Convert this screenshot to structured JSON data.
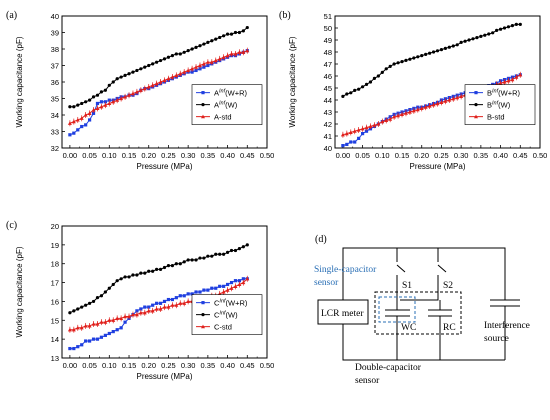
{
  "chart_data": [
    {
      "type": "line",
      "panel_label": "(a)",
      "xlabel": "Pressure (MPa)",
      "ylabel": "Working capacitance (pF)",
      "xlim": [
        -0.02,
        0.5
      ],
      "ylim": [
        32,
        40
      ],
      "x_ticks": [
        "0.00",
        "0.05",
        "0.10",
        "0.15",
        "0.20",
        "0.25",
        "0.30",
        "0.35",
        "0.40",
        "0.45",
        "0.50"
      ],
      "y_ticks": [
        "32",
        "33",
        "34",
        "35",
        "36",
        "37",
        "38",
        "39",
        "40"
      ],
      "legend_position": "center-right",
      "series": [
        {
          "name_prefix": "A",
          "name_sup": "Inf",
          "name_suffix": "(W+R)",
          "color": "#1f3fe0",
          "marker": "square",
          "x": [
            0.0,
            0.01,
            0.02,
            0.03,
            0.04,
            0.05,
            0.06,
            0.07,
            0.08,
            0.09,
            0.1,
            0.11,
            0.12,
            0.13,
            0.14,
            0.15,
            0.16,
            0.17,
            0.18,
            0.19,
            0.2,
            0.21,
            0.22,
            0.23,
            0.24,
            0.25,
            0.26,
            0.27,
            0.28,
            0.29,
            0.3,
            0.31,
            0.32,
            0.33,
            0.34,
            0.35,
            0.36,
            0.37,
            0.38,
            0.39,
            0.4,
            0.41,
            0.42,
            0.43,
            0.44,
            0.45
          ],
          "y": [
            32.8,
            32.9,
            33.1,
            33.3,
            33.4,
            33.7,
            34.1,
            34.7,
            34.8,
            34.8,
            34.9,
            34.9,
            35.0,
            35.1,
            35.1,
            35.2,
            35.2,
            35.3,
            35.5,
            35.6,
            35.6,
            35.7,
            35.8,
            35.9,
            36.0,
            36.1,
            36.2,
            36.3,
            36.4,
            36.5,
            36.6,
            36.6,
            36.7,
            36.8,
            36.9,
            37.0,
            37.1,
            37.2,
            37.3,
            37.4,
            37.5,
            37.6,
            37.6,
            37.7,
            37.8,
            37.9
          ]
        },
        {
          "name_prefix": "A",
          "name_sup": "Inf",
          "name_suffix": "(W)",
          "color": "#000000",
          "marker": "circle",
          "x": [
            0.0,
            0.01,
            0.02,
            0.03,
            0.04,
            0.05,
            0.06,
            0.07,
            0.08,
            0.09,
            0.1,
            0.11,
            0.12,
            0.13,
            0.14,
            0.15,
            0.16,
            0.17,
            0.18,
            0.19,
            0.2,
            0.21,
            0.22,
            0.23,
            0.24,
            0.25,
            0.26,
            0.27,
            0.28,
            0.29,
            0.3,
            0.31,
            0.32,
            0.33,
            0.34,
            0.35,
            0.36,
            0.37,
            0.38,
            0.39,
            0.4,
            0.41,
            0.42,
            0.43,
            0.44,
            0.45
          ],
          "y": [
            34.5,
            34.5,
            34.6,
            34.7,
            34.8,
            34.9,
            35.1,
            35.2,
            35.4,
            35.5,
            35.8,
            36.0,
            36.2,
            36.3,
            36.4,
            36.5,
            36.6,
            36.7,
            36.8,
            36.9,
            37.0,
            37.1,
            37.2,
            37.3,
            37.4,
            37.5,
            37.6,
            37.7,
            37.7,
            37.8,
            37.9,
            38.0,
            38.1,
            38.2,
            38.3,
            38.4,
            38.5,
            38.6,
            38.7,
            38.8,
            38.9,
            38.9,
            39.0,
            39.0,
            39.1,
            39.3
          ]
        },
        {
          "name_prefix": "A-std",
          "name_sup": "",
          "name_suffix": "",
          "color": "#e0201c",
          "marker": "triangle",
          "error_bars": true,
          "x": [
            0.0,
            0.01,
            0.02,
            0.03,
            0.04,
            0.05,
            0.06,
            0.07,
            0.08,
            0.09,
            0.1,
            0.11,
            0.12,
            0.13,
            0.14,
            0.15,
            0.16,
            0.17,
            0.18,
            0.19,
            0.2,
            0.21,
            0.22,
            0.23,
            0.24,
            0.25,
            0.26,
            0.27,
            0.28,
            0.29,
            0.3,
            0.31,
            0.32,
            0.33,
            0.34,
            0.35,
            0.36,
            0.37,
            0.38,
            0.39,
            0.4,
            0.41,
            0.42,
            0.43,
            0.44,
            0.45
          ],
          "y": [
            33.5,
            33.6,
            33.7,
            33.8,
            34.0,
            34.1,
            34.3,
            34.4,
            34.5,
            34.6,
            34.7,
            34.8,
            34.9,
            35.0,
            35.1,
            35.2,
            35.3,
            35.4,
            35.5,
            35.6,
            35.7,
            35.8,
            35.9,
            36.0,
            36.1,
            36.2,
            36.3,
            36.4,
            36.5,
            36.6,
            36.7,
            36.8,
            36.9,
            37.0,
            37.1,
            37.2,
            37.2,
            37.3,
            37.4,
            37.5,
            37.6,
            37.7,
            37.7,
            37.8,
            37.8,
            37.9
          ]
        }
      ]
    },
    {
      "type": "line",
      "panel_label": "(b)",
      "xlabel": "Pressure (MPa)",
      "ylabel": "Working capacitance (pF)",
      "xlim": [
        -0.02,
        0.5
      ],
      "ylim": [
        40,
        51
      ],
      "x_ticks": [
        "0.00",
        "0.05",
        "0.10",
        "0.15",
        "0.20",
        "0.25",
        "0.30",
        "0.35",
        "0.40",
        "0.45",
        "0.50"
      ],
      "y_ticks": [
        "40",
        "41",
        "42",
        "43",
        "44",
        "45",
        "46",
        "47",
        "48",
        "49",
        "50",
        "51"
      ],
      "legend_position": "center-right",
      "series": [
        {
          "name_prefix": "B",
          "name_sup": "Inf",
          "name_suffix": "(W+R)",
          "color": "#1f3fe0",
          "marker": "square",
          "x": [
            0.0,
            0.01,
            0.02,
            0.03,
            0.04,
            0.05,
            0.06,
            0.07,
            0.08,
            0.09,
            0.1,
            0.11,
            0.12,
            0.13,
            0.14,
            0.15,
            0.16,
            0.17,
            0.18,
            0.19,
            0.2,
            0.21,
            0.22,
            0.23,
            0.24,
            0.25,
            0.26,
            0.27,
            0.28,
            0.29,
            0.3,
            0.31,
            0.32,
            0.33,
            0.34,
            0.35,
            0.36,
            0.37,
            0.38,
            0.39,
            0.4,
            0.41,
            0.42,
            0.43,
            0.44,
            0.45
          ],
          "y": [
            40.2,
            40.3,
            40.5,
            40.5,
            40.8,
            41.2,
            41.4,
            41.6,
            41.8,
            42.0,
            42.2,
            42.4,
            42.6,
            42.8,
            42.9,
            43.0,
            43.1,
            43.2,
            43.3,
            43.4,
            43.4,
            43.5,
            43.6,
            43.7,
            43.8,
            44.0,
            44.1,
            44.2,
            44.3,
            44.4,
            44.5,
            44.6,
            44.7,
            44.8,
            44.9,
            45.0,
            45.1,
            45.2,
            45.3,
            45.4,
            45.6,
            45.7,
            45.8,
            45.9,
            46.0,
            46.1
          ]
        },
        {
          "name_prefix": "B",
          "name_sup": "Inf",
          "name_suffix": "(W)",
          "color": "#000000",
          "marker": "circle",
          "x": [
            0.0,
            0.01,
            0.02,
            0.03,
            0.04,
            0.05,
            0.06,
            0.07,
            0.08,
            0.09,
            0.1,
            0.11,
            0.12,
            0.13,
            0.14,
            0.15,
            0.16,
            0.17,
            0.18,
            0.19,
            0.2,
            0.21,
            0.22,
            0.23,
            0.24,
            0.25,
            0.26,
            0.27,
            0.28,
            0.29,
            0.3,
            0.31,
            0.32,
            0.33,
            0.34,
            0.35,
            0.36,
            0.37,
            0.38,
            0.39,
            0.4,
            0.41,
            0.42,
            0.43,
            0.44,
            0.45
          ],
          "y": [
            44.3,
            44.5,
            44.6,
            44.8,
            44.9,
            45.1,
            45.3,
            45.5,
            45.8,
            46.0,
            46.3,
            46.6,
            46.8,
            47.0,
            47.1,
            47.2,
            47.3,
            47.4,
            47.5,
            47.6,
            47.7,
            47.8,
            47.9,
            48.0,
            48.1,
            48.2,
            48.3,
            48.4,
            48.5,
            48.6,
            48.8,
            48.9,
            49.0,
            49.1,
            49.2,
            49.3,
            49.4,
            49.5,
            49.6,
            49.8,
            49.9,
            50.0,
            50.1,
            50.2,
            50.3,
            50.3
          ]
        },
        {
          "name_prefix": "B-std",
          "name_sup": "",
          "name_suffix": "",
          "color": "#e0201c",
          "marker": "triangle",
          "error_bars": true,
          "x": [
            0.0,
            0.01,
            0.02,
            0.03,
            0.04,
            0.05,
            0.06,
            0.07,
            0.08,
            0.09,
            0.1,
            0.11,
            0.12,
            0.13,
            0.14,
            0.15,
            0.16,
            0.17,
            0.18,
            0.19,
            0.2,
            0.21,
            0.22,
            0.23,
            0.24,
            0.25,
            0.26,
            0.27,
            0.28,
            0.29,
            0.3,
            0.31,
            0.32,
            0.33,
            0.34,
            0.35,
            0.36,
            0.37,
            0.38,
            0.39,
            0.4,
            0.41,
            0.42,
            0.43,
            0.44,
            0.45
          ],
          "y": [
            41.1,
            41.2,
            41.3,
            41.4,
            41.5,
            41.6,
            41.7,
            41.8,
            41.9,
            42.0,
            42.2,
            42.3,
            42.4,
            42.6,
            42.7,
            42.8,
            42.9,
            43.0,
            43.1,
            43.2,
            43.3,
            43.4,
            43.5,
            43.6,
            43.7,
            43.8,
            43.9,
            44.0,
            44.1,
            44.2,
            44.3,
            44.4,
            44.5,
            44.6,
            44.7,
            44.8,
            44.9,
            45.0,
            45.1,
            45.3,
            45.4,
            45.5,
            45.6,
            45.7,
            45.9,
            46.1
          ]
        }
      ]
    },
    {
      "type": "line",
      "panel_label": "(c)",
      "xlabel": "Pressure (MPa)",
      "ylabel": "Working capacitance (pF)",
      "xlim": [
        -0.02,
        0.5
      ],
      "ylim": [
        13,
        20
      ],
      "x_ticks": [
        "0.00",
        "0.05",
        "0.10",
        "0.15",
        "0.20",
        "0.25",
        "0.30",
        "0.35",
        "0.40",
        "0.45",
        "0.50"
      ],
      "y_ticks": [
        "13",
        "14",
        "15",
        "16",
        "17",
        "18",
        "19",
        "20"
      ],
      "legend_position": "center-right",
      "series": [
        {
          "name_prefix": "C",
          "name_sup": "Inf",
          "name_suffix": "(W+R)",
          "color": "#1f3fe0",
          "marker": "square",
          "x": [
            0.0,
            0.01,
            0.02,
            0.03,
            0.04,
            0.05,
            0.06,
            0.07,
            0.08,
            0.09,
            0.1,
            0.11,
            0.12,
            0.13,
            0.14,
            0.15,
            0.16,
            0.17,
            0.18,
            0.19,
            0.2,
            0.21,
            0.22,
            0.23,
            0.24,
            0.25,
            0.26,
            0.27,
            0.28,
            0.29,
            0.3,
            0.31,
            0.32,
            0.33,
            0.34,
            0.35,
            0.36,
            0.37,
            0.38,
            0.39,
            0.4,
            0.41,
            0.42,
            0.43,
            0.44,
            0.45
          ],
          "y": [
            13.5,
            13.5,
            13.6,
            13.7,
            13.9,
            13.9,
            14.0,
            14.0,
            14.1,
            14.2,
            14.3,
            14.4,
            14.5,
            14.6,
            14.9,
            15.1,
            15.3,
            15.5,
            15.6,
            15.7,
            15.7,
            15.8,
            15.9,
            15.9,
            16.0,
            16.1,
            16.1,
            16.2,
            16.3,
            16.3,
            16.4,
            16.4,
            16.5,
            16.5,
            16.6,
            16.6,
            16.7,
            16.7,
            16.8,
            16.8,
            16.9,
            17.0,
            17.1,
            17.1,
            17.2,
            17.2
          ]
        },
        {
          "name_prefix": "C",
          "name_sup": "Inf",
          "name_suffix": "(W)",
          "color": "#000000",
          "marker": "circle",
          "x": [
            0.0,
            0.01,
            0.02,
            0.03,
            0.04,
            0.05,
            0.06,
            0.07,
            0.08,
            0.09,
            0.1,
            0.11,
            0.12,
            0.13,
            0.14,
            0.15,
            0.16,
            0.17,
            0.18,
            0.19,
            0.2,
            0.21,
            0.22,
            0.23,
            0.24,
            0.25,
            0.26,
            0.27,
            0.28,
            0.29,
            0.3,
            0.31,
            0.32,
            0.33,
            0.34,
            0.35,
            0.36,
            0.37,
            0.38,
            0.39,
            0.4,
            0.41,
            0.42,
            0.43,
            0.44,
            0.45
          ],
          "y": [
            15.4,
            15.5,
            15.6,
            15.7,
            15.8,
            15.9,
            16.0,
            16.2,
            16.3,
            16.5,
            16.7,
            16.9,
            17.1,
            17.2,
            17.3,
            17.3,
            17.4,
            17.4,
            17.5,
            17.5,
            17.6,
            17.6,
            17.7,
            17.7,
            17.8,
            17.9,
            17.9,
            18.0,
            18.0,
            18.1,
            18.2,
            18.2,
            18.2,
            18.3,
            18.3,
            18.4,
            18.4,
            18.5,
            18.5,
            18.5,
            18.6,
            18.7,
            18.7,
            18.8,
            18.9,
            19.0
          ]
        },
        {
          "name_prefix": "C-std",
          "name_sup": "",
          "name_suffix": "",
          "color": "#e0201c",
          "marker": "triangle",
          "error_bars": true,
          "x": [
            0.0,
            0.01,
            0.02,
            0.03,
            0.04,
            0.05,
            0.06,
            0.07,
            0.08,
            0.09,
            0.1,
            0.11,
            0.12,
            0.13,
            0.14,
            0.15,
            0.16,
            0.17,
            0.18,
            0.19,
            0.2,
            0.21,
            0.22,
            0.23,
            0.24,
            0.25,
            0.26,
            0.27,
            0.28,
            0.29,
            0.3,
            0.31,
            0.32,
            0.33,
            0.34,
            0.35,
            0.36,
            0.37,
            0.38,
            0.39,
            0.4,
            0.41,
            0.42,
            0.43,
            0.44,
            0.45
          ],
          "y": [
            14.5,
            14.5,
            14.6,
            14.6,
            14.7,
            14.7,
            14.8,
            14.8,
            14.9,
            14.9,
            15.0,
            15.0,
            15.1,
            15.1,
            15.2,
            15.2,
            15.3,
            15.3,
            15.4,
            15.4,
            15.5,
            15.5,
            15.6,
            15.6,
            15.7,
            15.7,
            15.8,
            15.8,
            15.9,
            15.9,
            16.0,
            16.0,
            16.1,
            16.1,
            16.2,
            16.2,
            16.3,
            16.3,
            16.4,
            16.5,
            16.6,
            16.7,
            16.8,
            16.9,
            17.0,
            17.2
          ]
        }
      ]
    }
  ],
  "diagram": {
    "panel_label": "(d)",
    "lcr_label": "LCR meter",
    "s1_label": "S1",
    "s2_label": "S2",
    "wc_label": "WC",
    "rc_label": "RC",
    "single_line1": "Single-capacitor",
    "single_line2": "sensor",
    "double_line1": "Double-capacitor",
    "double_line2": "sensor",
    "interf_line1": "Interference",
    "interf_line2": "source",
    "single_color": "#2a6fb5"
  }
}
